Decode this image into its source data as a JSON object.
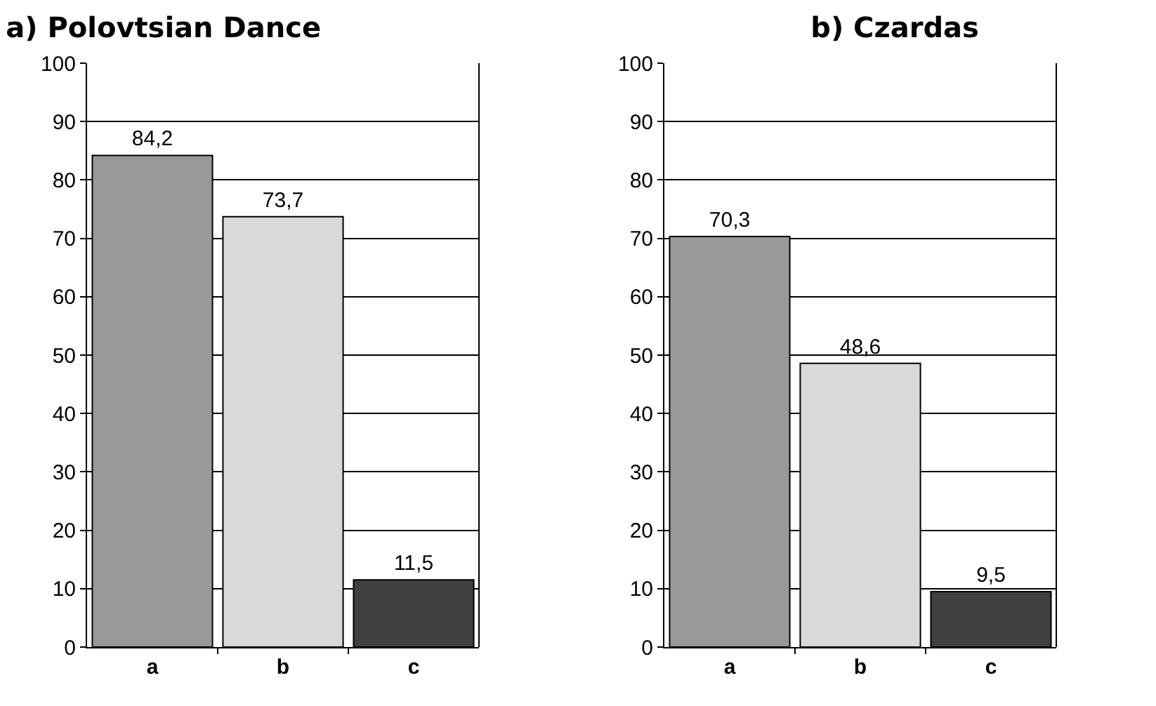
{
  "chart_data": [
    {
      "type": "bar",
      "title": "a) Polovtsian Dance",
      "categories": [
        "a",
        "b",
        "c"
      ],
      "values": [
        84.2,
        73.7,
        11.5
      ],
      "colors": [
        "#999999",
        "#d9d9d9",
        "#404040"
      ],
      "value_labels": [
        "84,2",
        "73,7",
        "11,5"
      ],
      "ylim": [
        0,
        100
      ],
      "yticks": [
        0,
        10,
        20,
        30,
        40,
        50,
        60,
        70,
        80,
        90,
        100
      ],
      "grid": "y",
      "legend": false
    },
    {
      "type": "bar",
      "title": "b) Czardas",
      "categories": [
        "a",
        "b",
        "c"
      ],
      "values": [
        70.3,
        48.6,
        9.5
      ],
      "colors": [
        "#999999",
        "#d9d9d9",
        "#404040"
      ],
      "value_labels": [
        "70,3",
        "48,6",
        "9,5"
      ],
      "ylim": [
        0,
        100
      ],
      "yticks": [
        0,
        10,
        20,
        30,
        40,
        50,
        60,
        70,
        80,
        90,
        100
      ],
      "grid": "y",
      "legend": false
    }
  ]
}
